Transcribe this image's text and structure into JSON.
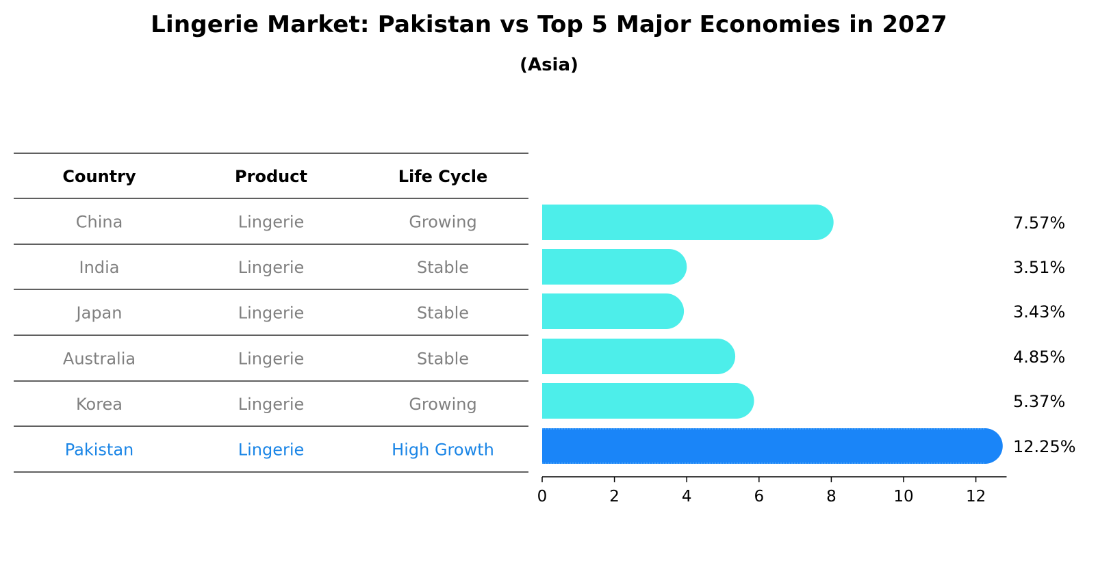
{
  "title": "Lingerie Market: Pakistan vs Top 5 Major Economies in 2027",
  "subtitle": "(Asia)",
  "table": {
    "headers": [
      "Country",
      "Product",
      "Life Cycle"
    ],
    "rows": [
      [
        "China",
        "Lingerie",
        "Growing"
      ],
      [
        "India",
        "Lingerie",
        "Stable"
      ],
      [
        "Japan",
        "Lingerie",
        "Stable"
      ],
      [
        "Australia",
        "Lingerie",
        "Stable"
      ],
      [
        "Korea",
        "Lingerie",
        "Growing"
      ],
      [
        "Pakistan",
        "Lingerie",
        "High Growth"
      ]
    ],
    "row_color": "#808080",
    "highlight_row_color": "#1a85e6"
  },
  "chart_data": {
    "type": "bar",
    "orientation": "horizontal",
    "categories": [
      "China",
      "India",
      "Japan",
      "Australia",
      "Korea",
      "Pakistan"
    ],
    "values": [
      7.57,
      3.51,
      3.43,
      4.85,
      5.37,
      12.25
    ],
    "value_labels": [
      "7.57%",
      "3.51%",
      "3.43%",
      "4.85%",
      "5.37%",
      "12.25%"
    ],
    "xlim": [
      0,
      12.85
    ],
    "xticks": [
      0,
      2,
      4,
      6,
      8,
      10,
      12
    ],
    "grid": false,
    "bar_color": "#4deeea",
    "highlight_color": "#1a85f8",
    "highlight_category": "Pakistan"
  }
}
